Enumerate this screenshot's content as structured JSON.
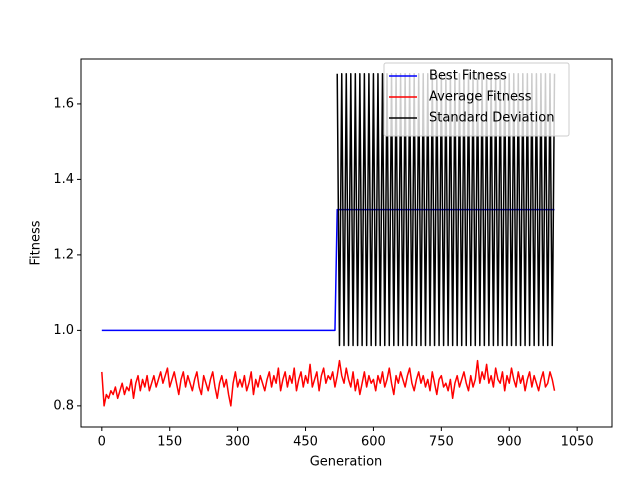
{
  "chart_data": {
    "type": "line",
    "xlabel": "Generation",
    "ylabel": "Fitness",
    "xlim": [
      -46,
      1127
    ],
    "ylim": [
      0.744,
      1.719
    ],
    "xticks": [
      0,
      150,
      300,
      450,
      600,
      750,
      900,
      1050
    ],
    "yticks": [
      {
        "value": 0.8,
        "label": "0.8"
      },
      {
        "value": 1.0,
        "label": "1.0"
      },
      {
        "value": 1.2,
        "label": "1.2"
      },
      {
        "value": 1.4,
        "label": "1.4"
      },
      {
        "value": 1.6,
        "label": "1.6"
      }
    ],
    "legend": "upper right",
    "x": [
      0,
      5,
      10,
      15,
      20,
      25,
      30,
      35,
      40,
      45,
      50,
      55,
      60,
      65,
      70,
      75,
      80,
      85,
      90,
      95,
      100,
      105,
      110,
      115,
      120,
      125,
      130,
      135,
      140,
      145,
      150,
      155,
      160,
      165,
      170,
      175,
      180,
      185,
      190,
      195,
      200,
      205,
      210,
      215,
      220,
      225,
      230,
      235,
      240,
      245,
      250,
      255,
      260,
      265,
      270,
      275,
      280,
      285,
      290,
      295,
      300,
      305,
      310,
      315,
      320,
      325,
      330,
      335,
      340,
      345,
      350,
      355,
      360,
      365,
      370,
      375,
      380,
      385,
      390,
      395,
      400,
      405,
      410,
      415,
      420,
      425,
      430,
      435,
      440,
      445,
      450,
      455,
      460,
      465,
      470,
      475,
      480,
      485,
      490,
      495,
      500,
      505,
      510,
      515,
      520,
      525,
      530,
      535,
      540,
      545,
      550,
      555,
      560,
      565,
      570,
      575,
      580,
      585,
      590,
      595,
      600,
      605,
      610,
      615,
      620,
      625,
      630,
      635,
      640,
      645,
      650,
      655,
      660,
      665,
      670,
      675,
      680,
      685,
      690,
      695,
      700,
      705,
      710,
      715,
      720,
      725,
      730,
      735,
      740,
      745,
      750,
      755,
      760,
      765,
      770,
      775,
      780,
      785,
      790,
      795,
      800,
      805,
      810,
      815,
      820,
      825,
      830,
      835,
      840,
      845,
      850,
      855,
      860,
      865,
      870,
      875,
      880,
      885,
      890,
      895,
      900,
      905,
      910,
      915,
      920,
      925,
      930,
      935,
      940,
      945,
      950,
      955,
      960,
      965,
      970,
      975,
      980,
      985,
      990,
      995,
      1000
    ],
    "series": [
      {
        "name": "Best Fitness",
        "color": "#0000ff",
        "values": [
          1.0,
          1.0,
          1.0,
          1.0,
          1.0,
          1.0,
          1.0,
          1.0,
          1.0,
          1.0,
          1.0,
          1.0,
          1.0,
          1.0,
          1.0,
          1.0,
          1.0,
          1.0,
          1.0,
          1.0,
          1.0,
          1.0,
          1.0,
          1.0,
          1.0,
          1.0,
          1.0,
          1.0,
          1.0,
          1.0,
          1.0,
          1.0,
          1.0,
          1.0,
          1.0,
          1.0,
          1.0,
          1.0,
          1.0,
          1.0,
          1.0,
          1.0,
          1.0,
          1.0,
          1.0,
          1.0,
          1.0,
          1.0,
          1.0,
          1.0,
          1.0,
          1.0,
          1.0,
          1.0,
          1.0,
          1.0,
          1.0,
          1.0,
          1.0,
          1.0,
          1.0,
          1.0,
          1.0,
          1.0,
          1.0,
          1.0,
          1.0,
          1.0,
          1.0,
          1.0,
          1.0,
          1.0,
          1.0,
          1.0,
          1.0,
          1.0,
          1.0,
          1.0,
          1.0,
          1.0,
          1.0,
          1.0,
          1.0,
          1.0,
          1.0,
          1.0,
          1.0,
          1.0,
          1.0,
          1.0,
          1.0,
          1.0,
          1.0,
          1.0,
          1.0,
          1.0,
          1.0,
          1.0,
          1.0,
          1.0,
          1.0,
          1.0,
          1.0,
          1.0,
          1.32,
          1.32,
          1.32,
          1.32,
          1.32,
          1.32,
          1.32,
          1.32,
          1.32,
          1.32,
          1.32,
          1.32,
          1.32,
          1.32,
          1.32,
          1.32,
          1.32,
          1.32,
          1.32,
          1.32,
          1.32,
          1.32,
          1.32,
          1.32,
          1.32,
          1.32,
          1.32,
          1.32,
          1.32,
          1.32,
          1.32,
          1.32,
          1.32,
          1.32,
          1.32,
          1.32,
          1.32,
          1.32,
          1.32,
          1.32,
          1.32,
          1.32,
          1.32,
          1.32,
          1.32,
          1.32,
          1.32,
          1.32,
          1.32,
          1.32,
          1.32,
          1.32,
          1.32,
          1.32,
          1.32,
          1.32,
          1.32,
          1.32,
          1.32,
          1.32,
          1.32,
          1.32,
          1.32,
          1.32,
          1.32,
          1.32,
          1.32,
          1.32,
          1.32,
          1.32,
          1.32,
          1.32,
          1.32,
          1.32,
          1.32,
          1.32,
          1.32,
          1.32,
          1.32,
          1.32,
          1.32,
          1.32,
          1.32,
          1.32,
          1.32,
          1.32,
          1.32,
          1.32,
          1.32,
          1.32,
          1.32,
          1.32,
          1.32,
          1.32,
          1.32,
          1.32,
          1.32
        ]
      },
      {
        "name": "Average Fitness",
        "color": "#ff0000",
        "values": [
          0.89,
          0.8,
          0.83,
          0.82,
          0.84,
          0.83,
          0.85,
          0.82,
          0.84,
          0.86,
          0.83,
          0.85,
          0.84,
          0.87,
          0.82,
          0.86,
          0.88,
          0.84,
          0.87,
          0.85,
          0.88,
          0.84,
          0.86,
          0.88,
          0.85,
          0.87,
          0.89,
          0.86,
          0.88,
          0.9,
          0.85,
          0.87,
          0.89,
          0.86,
          0.83,
          0.87,
          0.89,
          0.85,
          0.88,
          0.86,
          0.84,
          0.87,
          0.89,
          0.85,
          0.83,
          0.88,
          0.86,
          0.84,
          0.87,
          0.89,
          0.85,
          0.82,
          0.86,
          0.88,
          0.85,
          0.87,
          0.83,
          0.8,
          0.86,
          0.89,
          0.85,
          0.87,
          0.85,
          0.88,
          0.84,
          0.86,
          0.89,
          0.83,
          0.87,
          0.85,
          0.88,
          0.86,
          0.84,
          0.87,
          0.89,
          0.85,
          0.88,
          0.86,
          0.9,
          0.84,
          0.87,
          0.89,
          0.85,
          0.88,
          0.86,
          0.9,
          0.84,
          0.87,
          0.89,
          0.85,
          0.88,
          0.86,
          0.91,
          0.85,
          0.87,
          0.89,
          0.84,
          0.88,
          0.9,
          0.86,
          0.88,
          0.87,
          0.89,
          0.85,
          0.88,
          0.92,
          0.88,
          0.86,
          0.9,
          0.87,
          0.85,
          0.89,
          0.84,
          0.87,
          0.83,
          0.86,
          0.89,
          0.85,
          0.88,
          0.86,
          0.87,
          0.84,
          0.88,
          0.86,
          0.89,
          0.85,
          0.87,
          0.9,
          0.86,
          0.83,
          0.88,
          0.86,
          0.89,
          0.87,
          0.85,
          0.88,
          0.9,
          0.86,
          0.84,
          0.87,
          0.89,
          0.86,
          0.88,
          0.85,
          0.87,
          0.84,
          0.89,
          0.86,
          0.83,
          0.87,
          0.88,
          0.85,
          0.86,
          0.84,
          0.87,
          0.82,
          0.86,
          0.88,
          0.85,
          0.87,
          0.89,
          0.86,
          0.84,
          0.88,
          0.85,
          0.87,
          0.92,
          0.86,
          0.89,
          0.87,
          0.91,
          0.86,
          0.88,
          0.85,
          0.9,
          0.87,
          0.86,
          0.89,
          0.84,
          0.88,
          0.86,
          0.9,
          0.87,
          0.85,
          0.89,
          0.86,
          0.88,
          0.84,
          0.87,
          0.89,
          0.85,
          0.88,
          0.86,
          0.84,
          0.87,
          0.89,
          0.85,
          0.86,
          0.89,
          0.87,
          0.84
        ]
      },
      {
        "name": "Standard Deviation",
        "color": "#000000",
        "values": [
          null,
          null,
          null,
          null,
          null,
          null,
          null,
          null,
          null,
          null,
          null,
          null,
          null,
          null,
          null,
          null,
          null,
          null,
          null,
          null,
          null,
          null,
          null,
          null,
          null,
          null,
          null,
          null,
          null,
          null,
          null,
          null,
          null,
          null,
          null,
          null,
          null,
          null,
          null,
          null,
          null,
          null,
          null,
          null,
          null,
          null,
          null,
          null,
          null,
          null,
          null,
          null,
          null,
          null,
          null,
          null,
          null,
          null,
          null,
          null,
          null,
          null,
          null,
          null,
          null,
          null,
          null,
          null,
          null,
          null,
          null,
          null,
          null,
          null,
          null,
          null,
          null,
          null,
          null,
          null,
          null,
          null,
          null,
          null,
          null,
          null,
          null,
          null,
          null,
          null,
          null,
          null,
          null,
          null,
          null,
          null,
          null,
          null,
          null,
          null,
          null,
          null,
          null,
          null,
          1.68,
          0.96,
          1.68,
          0.96,
          1.68,
          0.96,
          1.68,
          0.96,
          1.68,
          0.96,
          1.68,
          0.96,
          1.68,
          0.96,
          1.68,
          0.96,
          1.68,
          0.96,
          1.68,
          0.96,
          1.68,
          0.96,
          1.68,
          0.96,
          1.68,
          0.96,
          1.68,
          0.96,
          1.68,
          0.96,
          1.68,
          0.96,
          1.68,
          0.96,
          1.68,
          0.96,
          1.68,
          0.96,
          1.68,
          0.96,
          1.68,
          0.96,
          1.68,
          0.96,
          1.68,
          0.96,
          1.68,
          0.96,
          1.68,
          0.96,
          1.68,
          0.96,
          1.68,
          0.96,
          1.68,
          0.96,
          1.68,
          0.96,
          1.68,
          0.96,
          1.68,
          0.96,
          1.68,
          0.96,
          1.68,
          0.96,
          1.68,
          0.96,
          1.68,
          0.96,
          1.68,
          0.96,
          1.68,
          0.96,
          1.68,
          0.96,
          1.68,
          0.96,
          1.68,
          0.96,
          1.68,
          0.96,
          1.68,
          0.96,
          1.68,
          0.96,
          1.68,
          0.96,
          1.68,
          0.96,
          1.68,
          0.96,
          1.68,
          0.96,
          1.68,
          0.96,
          1.68
        ]
      }
    ]
  }
}
